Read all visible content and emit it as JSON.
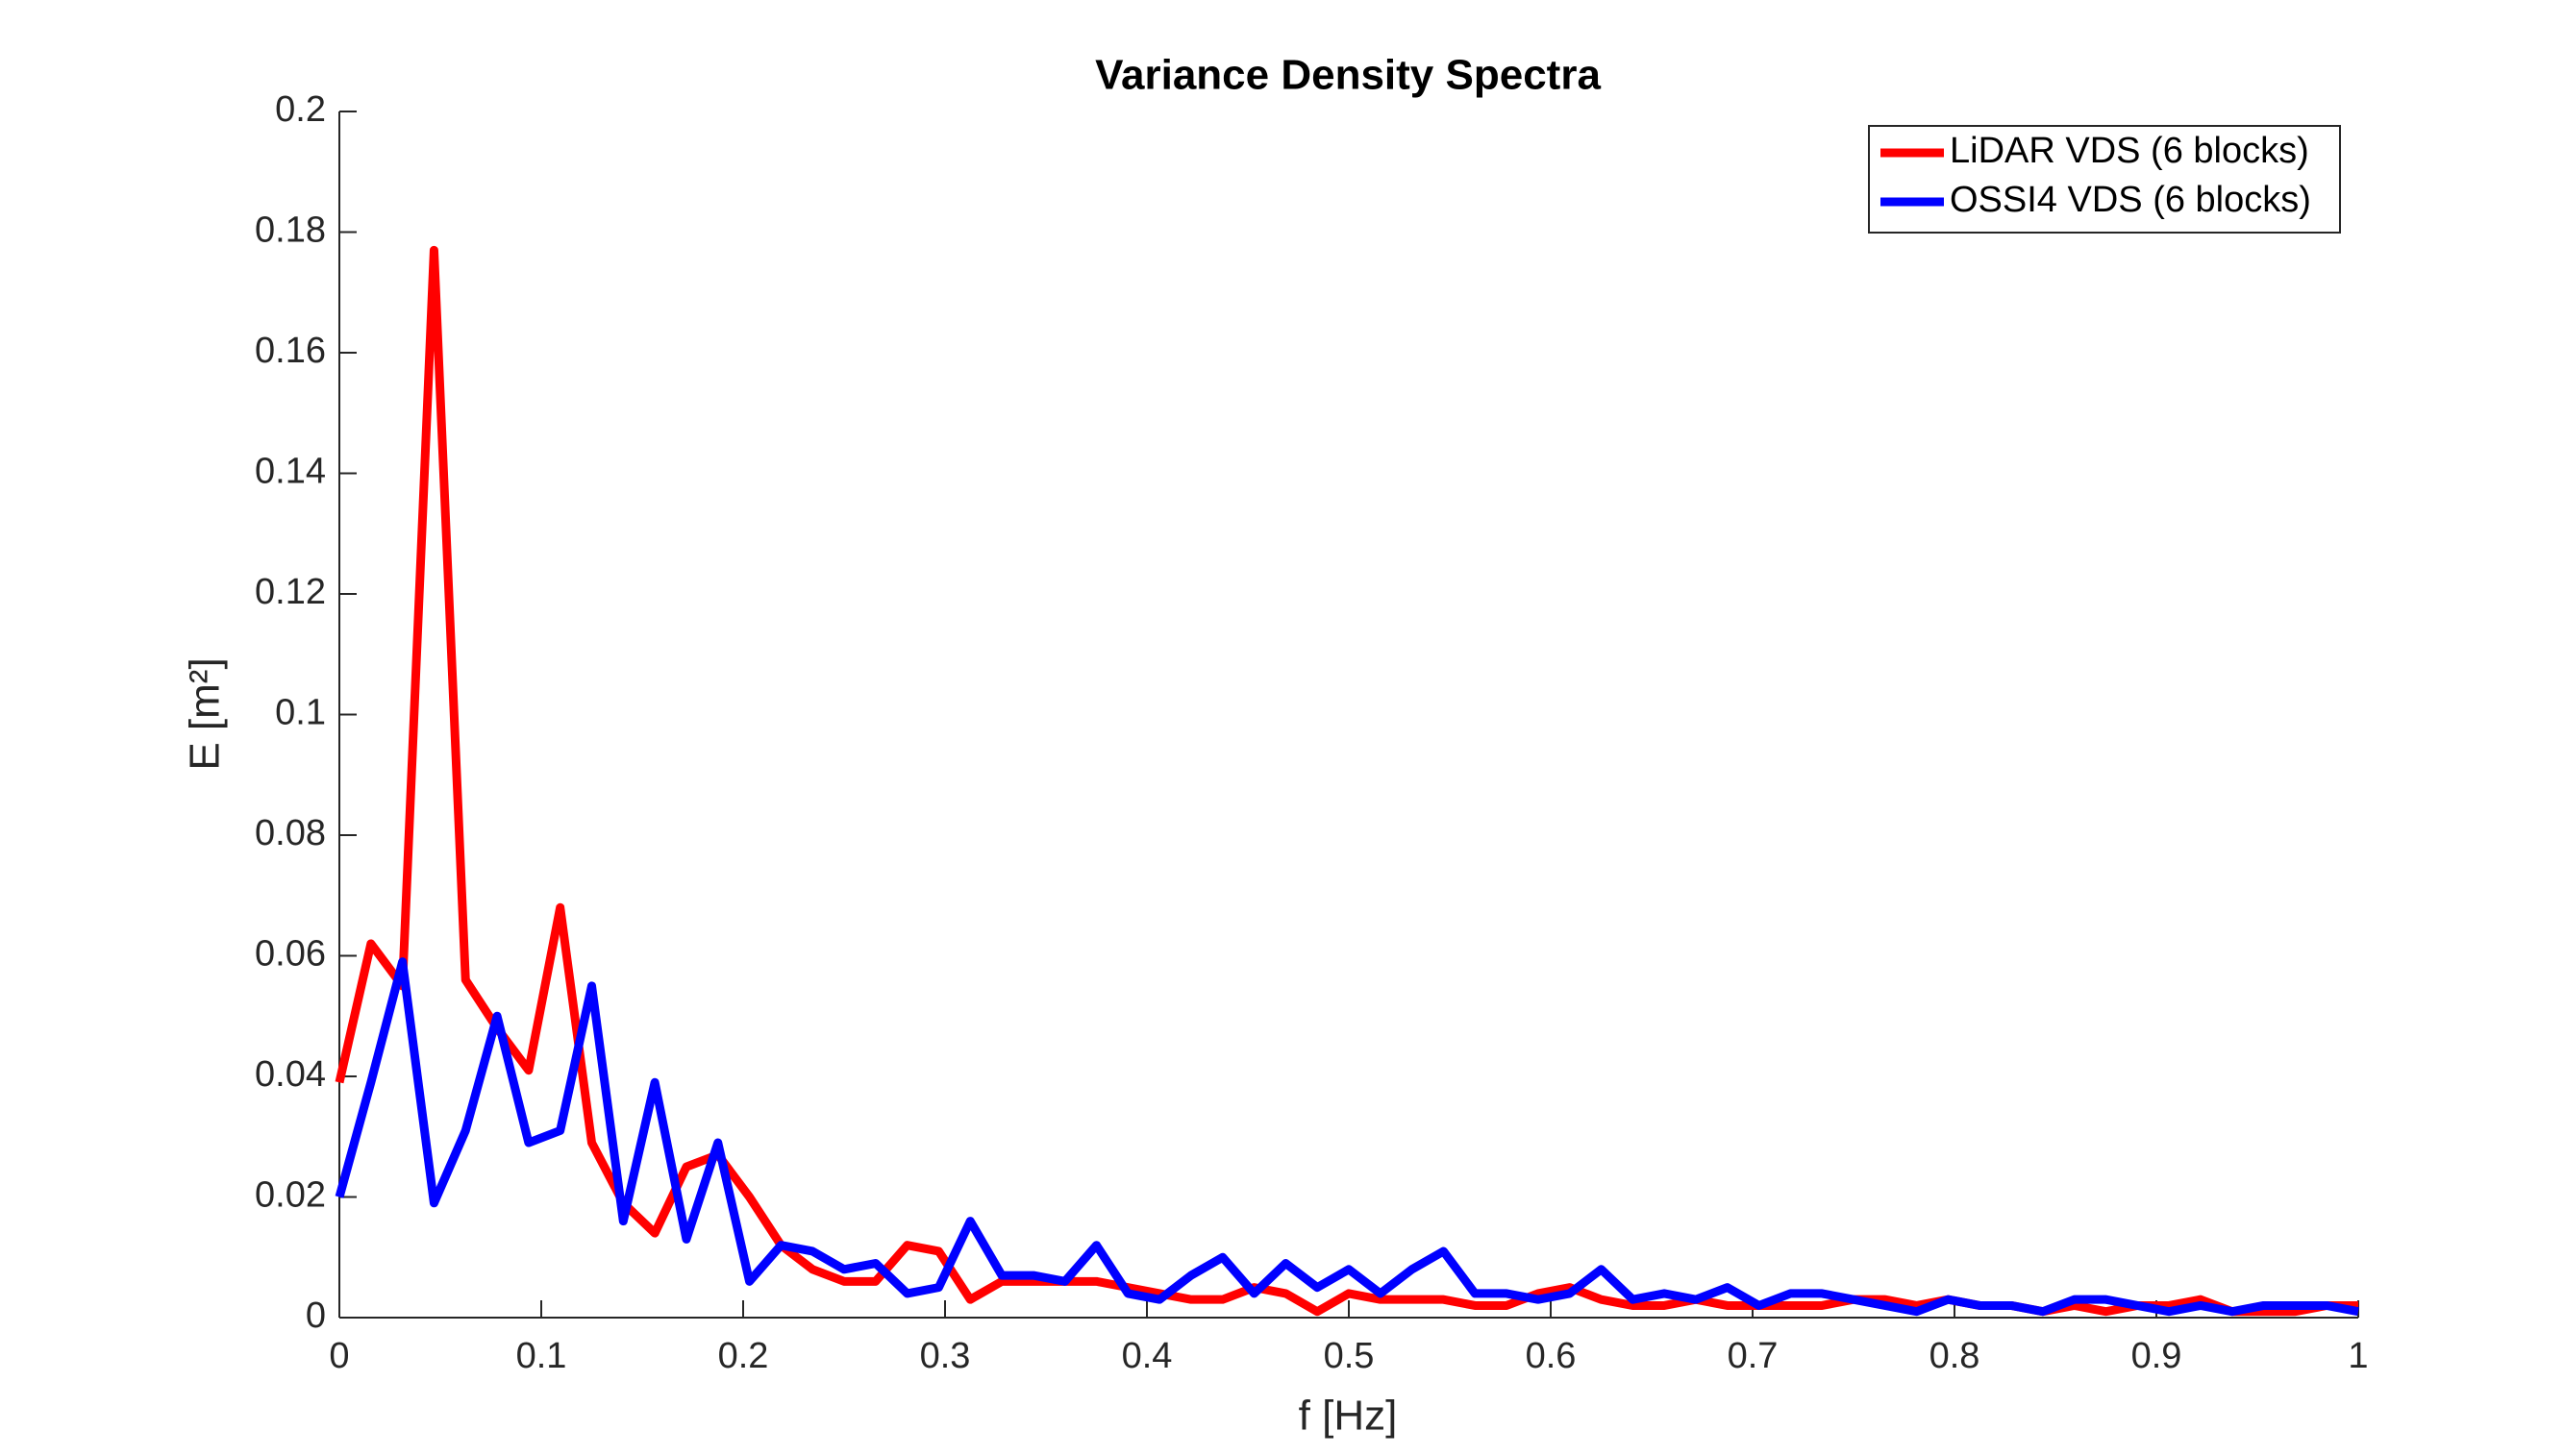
{
  "chart_data": {
    "type": "line",
    "title": "Variance Density Spectra",
    "xlabel": "f [Hz]",
    "ylabel": "E [m²]",
    "x": [
      0,
      0.015625,
      0.03125,
      0.046875,
      0.0625,
      0.078125,
      0.09375,
      0.109375,
      0.125,
      0.140625,
      0.15625,
      0.171875,
      0.1875,
      0.203125,
      0.21875,
      0.234375,
      0.25,
      0.265625,
      0.28125,
      0.296875,
      0.3125,
      0.328125,
      0.34375,
      0.359375,
      0.375,
      0.390625,
      0.40625,
      0.421875,
      0.4375,
      0.453125,
      0.46875,
      0.484375,
      0.5,
      0.515625,
      0.53125,
      0.546875,
      0.5625,
      0.578125,
      0.59375,
      0.609375,
      0.625,
      0.640625,
      0.65625,
      0.671875,
      0.6875,
      0.703125,
      0.71875,
      0.734375,
      0.75,
      0.765625,
      0.78125,
      0.796875,
      0.8125,
      0.828125,
      0.84375,
      0.859375,
      0.875,
      0.890625,
      0.90625,
      0.921875,
      0.9375,
      0.953125,
      0.96875,
      0.984375,
      1
    ],
    "series": [
      {
        "name": "LiDAR VDS (6 blocks)",
        "color": "#ff0000",
        "values": [
          0.039,
          0.062,
          0.055,
          0.177,
          0.056,
          0.048,
          0.041,
          0.068,
          0.029,
          0.019,
          0.014,
          0.025,
          0.027,
          0.02,
          0.012,
          0.008,
          0.006,
          0.006,
          0.012,
          0.011,
          0.003,
          0.006,
          0.006,
          0.006,
          0.006,
          0.005,
          0.004,
          0.003,
          0.003,
          0.005,
          0.004,
          0.001,
          0.004,
          0.003,
          0.003,
          0.003,
          0.002,
          0.002,
          0.004,
          0.005,
          0.003,
          0.002,
          0.002,
          0.003,
          0.002,
          0.002,
          0.002,
          0.002,
          0.003,
          0.003,
          0.002,
          0.003,
          0.002,
          0.002,
          0.001,
          0.002,
          0.001,
          0.002,
          0.002,
          0.003,
          0.001,
          0.001,
          0.001,
          0.002,
          0.002
        ]
      },
      {
        "name": "OSSI4 VDS (6 blocks)",
        "color": "#0000ff",
        "values": [
          0.02,
          0.039,
          0.059,
          0.019,
          0.031,
          0.05,
          0.029,
          0.031,
          0.055,
          0.016,
          0.039,
          0.013,
          0.029,
          0.006,
          0.012,
          0.011,
          0.008,
          0.009,
          0.004,
          0.005,
          0.016,
          0.007,
          0.007,
          0.006,
          0.012,
          0.004,
          0.003,
          0.007,
          0.01,
          0.004,
          0.009,
          0.005,
          0.008,
          0.004,
          0.008,
          0.011,
          0.004,
          0.004,
          0.003,
          0.004,
          0.008,
          0.003,
          0.004,
          0.003,
          0.005,
          0.002,
          0.004,
          0.004,
          0.003,
          0.002,
          0.001,
          0.003,
          0.002,
          0.002,
          0.001,
          0.003,
          0.003,
          0.002,
          0.001,
          0.002,
          0.001,
          0.002,
          0.002,
          0.002,
          0.001
        ]
      }
    ],
    "xlim": [
      0,
      1
    ],
    "xticks": [
      0,
      0.1,
      0.2,
      0.3,
      0.4,
      0.5,
      0.6,
      0.7,
      0.8,
      0.9,
      1
    ],
    "ylim": [
      0,
      0.2
    ],
    "yticks": [
      0,
      0.02,
      0.04,
      0.06,
      0.08,
      0.1,
      0.12,
      0.14,
      0.16,
      0.18,
      0.2
    ],
    "legend": "top-right"
  }
}
